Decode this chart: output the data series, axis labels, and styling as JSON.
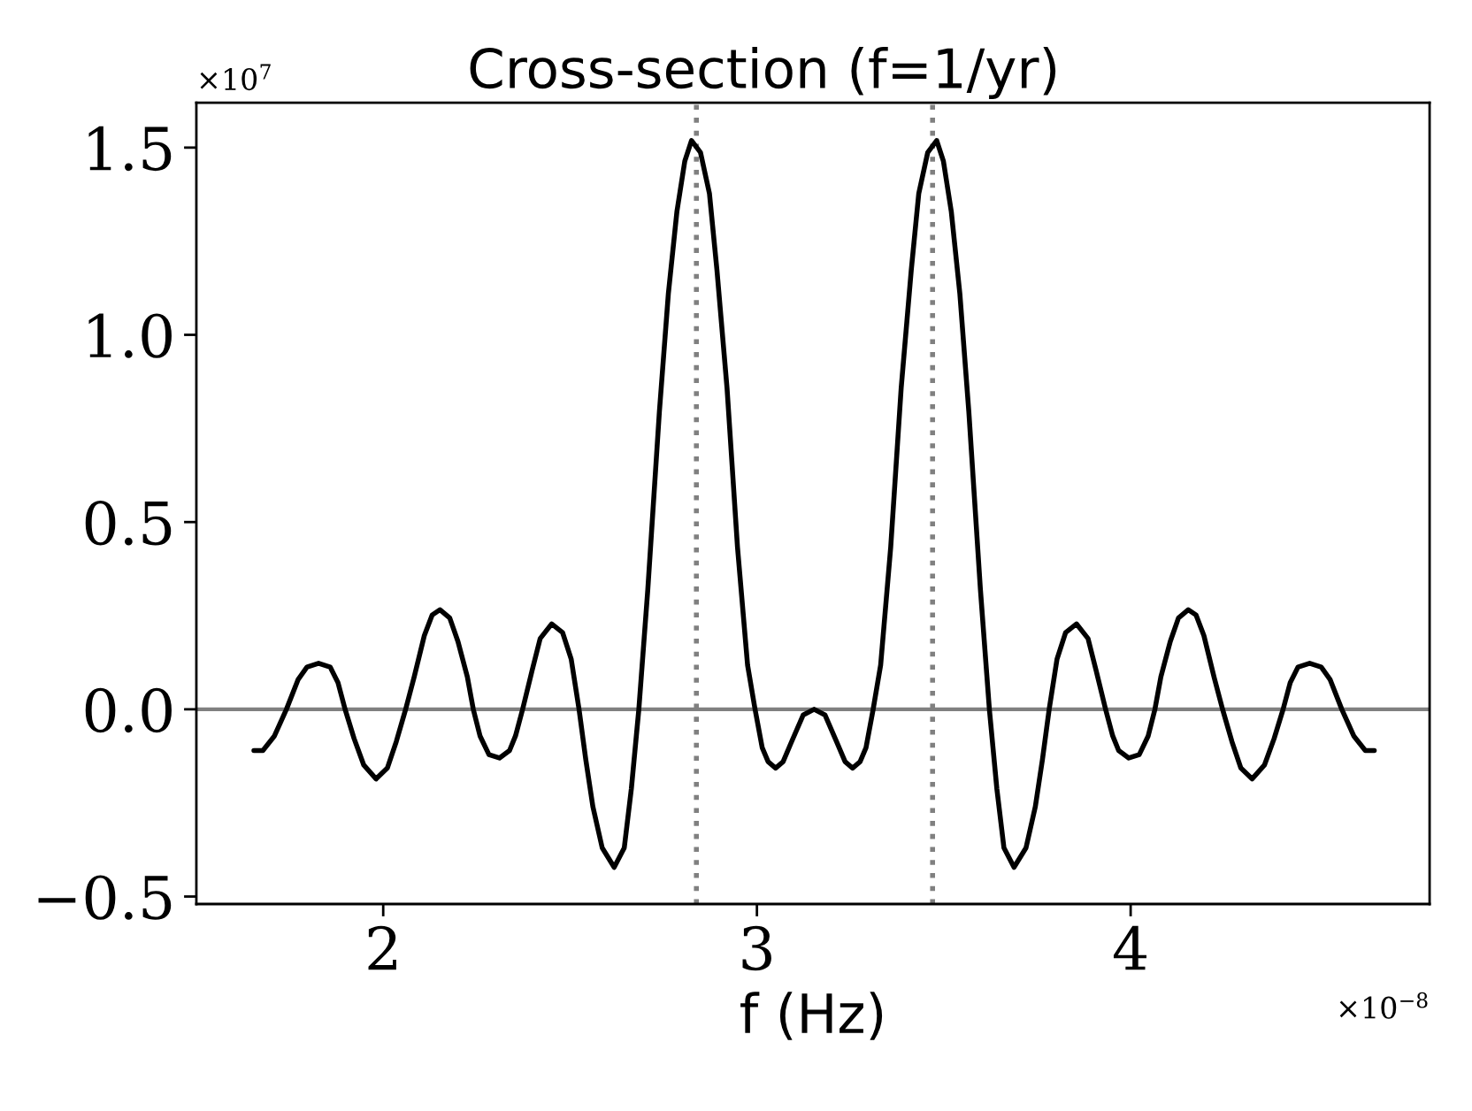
{
  "chart_data": {
    "type": "line",
    "title": "Cross-section (f=1/yr)",
    "xlabel": "f (Hz)",
    "x": [
      1.654,
      1.678,
      1.709,
      1.741,
      1.772,
      1.796,
      1.827,
      1.858,
      1.879,
      1.898,
      1.922,
      1.948,
      1.981,
      2.011,
      2.035,
      2.06,
      2.083,
      2.11,
      2.131,
      2.152,
      2.178,
      2.2,
      2.225,
      2.241,
      2.259,
      2.283,
      2.311,
      2.338,
      2.354,
      2.373,
      2.398,
      2.42,
      2.451,
      2.48,
      2.503,
      2.524,
      2.542,
      2.561,
      2.586,
      2.618,
      2.645,
      2.664,
      2.684,
      2.708,
      2.739,
      2.763,
      2.786,
      2.807,
      2.825,
      2.849,
      2.873,
      2.893,
      2.92,
      2.948,
      2.975,
      2.995,
      3.014,
      3.03,
      3.05,
      3.07,
      3.093,
      3.124,
      3.153,
      3.182,
      3.213,
      3.236,
      3.256,
      3.276,
      3.292,
      3.311,
      3.331,
      3.358,
      3.386,
      3.413,
      3.433,
      3.457,
      3.481,
      3.499,
      3.52,
      3.543,
      3.567,
      3.598,
      3.622,
      3.642,
      3.661,
      3.688,
      3.72,
      3.745,
      3.764,
      3.782,
      3.803,
      3.826,
      3.855,
      3.886,
      3.908,
      3.933,
      3.952,
      3.968,
      3.995,
      4.023,
      4.047,
      4.065,
      4.081,
      4.106,
      4.128,
      4.154,
      4.175,
      4.196,
      4.223,
      4.246,
      4.271,
      4.295,
      4.325,
      4.358,
      4.384,
      4.408,
      4.427,
      4.448,
      4.479,
      4.51,
      4.534,
      4.565,
      4.597,
      4.628,
      4.652
    ],
    "series": [
      {
        "color": "#000000",
        "values": [
          -0.11,
          -0.11,
          -0.071,
          0,
          0.079,
          0.113,
          0.123,
          0.113,
          0.071,
          0,
          -0.078,
          -0.149,
          -0.186,
          -0.157,
          -0.086,
          0,
          0.087,
          0.197,
          0.252,
          0.266,
          0.244,
          0.181,
          0.087,
          0,
          -0.071,
          -0.121,
          -0.13,
          -0.11,
          -0.071,
          0,
          0.102,
          0.189,
          0.228,
          0.205,
          0.134,
          0,
          -0.134,
          -0.26,
          -0.37,
          -0.422,
          -0.37,
          -0.212,
          0,
          0.32,
          0.795,
          1.11,
          1.33,
          1.464,
          1.519,
          1.487,
          1.377,
          1.173,
          0.858,
          0.433,
          0.118,
          0,
          -0.102,
          -0.14,
          -0.157,
          -0.14,
          -0.086,
          -0.015,
          0,
          -0.015,
          -0.086,
          -0.14,
          -0.157,
          -0.14,
          -0.102,
          0,
          0.118,
          0.433,
          0.858,
          1.173,
          1.377,
          1.487,
          1.519,
          1.464,
          1.33,
          1.11,
          0.795,
          0.32,
          0,
          -0.212,
          -0.37,
          -0.422,
          -0.37,
          -0.26,
          -0.134,
          0,
          0.134,
          0.205,
          0.228,
          0.189,
          0.102,
          0,
          -0.071,
          -0.11,
          -0.13,
          -0.121,
          -0.071,
          0,
          0.087,
          0.181,
          0.244,
          0.266,
          0.252,
          0.197,
          0.087,
          0,
          -0.086,
          -0.157,
          -0.186,
          -0.149,
          -0.078,
          0,
          0.071,
          0.113,
          0.123,
          0.113,
          0.079,
          0,
          -0.071,
          -0.11,
          -0.11
        ]
      }
    ],
    "xlim": [
      1.5,
      4.8
    ],
    "xticks": [
      2,
      3,
      4
    ],
    "ylim": [
      -0.52,
      1.62
    ],
    "yticks": [
      {
        "value": -0.5,
        "label": "−0.5"
      },
      {
        "value": 0,
        "label": "0.0"
      },
      {
        "value": 0.5,
        "label": "0.5"
      },
      {
        "value": 1.0,
        "label": "1.0"
      },
      {
        "value": 1.5,
        "label": "1.5"
      }
    ],
    "ref_lines": [
      {
        "axis": "y",
        "value": 0,
        "color": "#808080",
        "line_style": "solid"
      },
      {
        "axis": "x",
        "value": 2.838,
        "color": "#808080",
        "line_style": "dotted"
      },
      {
        "axis": "x",
        "value": 3.47,
        "color": "#808080",
        "line_style": "dotted"
      }
    ],
    "annotations": [
      "×10$^{7}$",
      "×10$^{−8}$"
    ],
    "line_style": "solid"
  }
}
